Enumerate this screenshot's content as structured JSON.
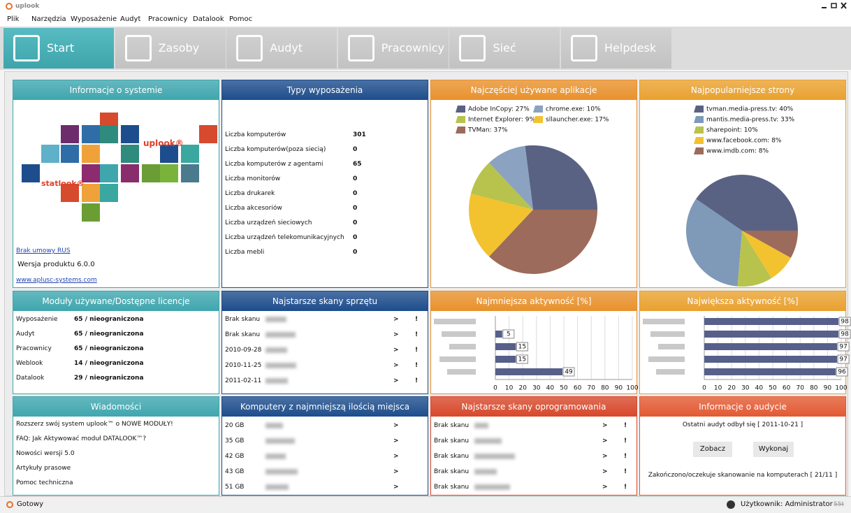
{
  "window": {
    "title": "uplook",
    "status": "Gotowy",
    "user": "Użytkownik: Administrator",
    "extra": "55t"
  },
  "menu": [
    "Plik",
    "Narzędzia",
    "Wyposażenie",
    "Audyt",
    "Pracownicy",
    "Datalook",
    "Pomoc"
  ],
  "tabs": [
    "Start",
    "Zasoby",
    "Audyt",
    "Pracownicy",
    "Sieć",
    "Helpdesk"
  ],
  "symbols": {
    "more": ">",
    "alert": "!"
  },
  "panels": {
    "system_info": {
      "title": "Informacje o systemie",
      "logo_main": "uplook®",
      "logo_sub": "statlook®",
      "link_rus": "Brak umowy RUS",
      "version": "Wersja produktu 6.0.0",
      "website": "www.aplusc-systems.com"
    },
    "equipment": {
      "title": "Typy wyposażenia",
      "rows": [
        [
          "Liczba komputerów",
          301
        ],
        [
          "Liczba komputerów(poza siecią)",
          0
        ],
        [
          "Liczba komputerów z agentami",
          65
        ],
        [
          "Liczba monitorów",
          0
        ],
        [
          "Liczba drukarek",
          0
        ],
        [
          "Liczba akcesoriów",
          0
        ],
        [
          "Liczba urządzeń sieciowych",
          0
        ],
        [
          "Liczba urządzeń telekomunikacyjnych",
          0
        ],
        [
          "Liczba mebli",
          0
        ]
      ]
    },
    "modules": {
      "title": "Moduły używane/Dostępne licencje",
      "rows": [
        [
          "Wyposażenie",
          "65 / nieograniczona"
        ],
        [
          "Audyt",
          "65 / nieograniczona"
        ],
        [
          "Pracownicy",
          "65 / nieograniczona"
        ],
        [
          "Weblook",
          "14 / nieograniczona"
        ],
        [
          "Datalook",
          "29 / nieograniczona"
        ]
      ]
    },
    "hardware_scans": {
      "title": "Najstarsze skany sprzętu",
      "rows": [
        "Brak skanu",
        "Brak skanu",
        "2010-09-28",
        "2010-11-25",
        "2011-02-11"
      ]
    },
    "news": {
      "title": "Wiadomości",
      "items": [
        "Rozszerz swój system uplook™ o NOWE MODUŁY!",
        "FAQ: Jak Aktywować moduł DATALOOK™?",
        "Nowości wersji 5.0",
        "Artykuły prasowe",
        "Pomoc techniczna"
      ]
    },
    "low_disk": {
      "title": "Komputery z najmniejszą ilością miejsca",
      "rows": [
        "20 GB",
        "35 GB",
        "42 GB",
        "43 GB",
        "51 GB"
      ]
    },
    "software_scans": {
      "title": "Najstarsze skany oprogramowania",
      "rows": [
        "Brak skanu",
        "Brak skanu",
        "Brak skanu",
        "Brak skanu",
        "Brak skanu"
      ]
    },
    "audit": {
      "title": "Informacje o audycie",
      "last": "Ostatni audyt odbył się  [ 2011-10-21 ]",
      "buttons": [
        "Zobacz",
        "Wykonaj"
      ],
      "status": "Zakończono/oczekuje skanowanie na komputerach [ 21/11 ]"
    }
  },
  "chart_data": [
    {
      "type": "pie",
      "title": "Najczęściej używane aplikacje",
      "categories": [
        "Adobe InCopy: 27%",
        "chrome.exe: 10%",
        "Internet Explorer: 9%",
        "sllauncher.exe: 17%",
        "TVMan: 37%"
      ],
      "values": [
        27,
        10,
        9,
        17,
        37
      ],
      "colors": [
        "#5a6283",
        "#8ba2c0",
        "#b7c34c",
        "#f3c22f",
        "#9c6b5b"
      ]
    },
    {
      "type": "pie",
      "title": "Najpopularniejsze strony",
      "categories": [
        "tvman.media-press.tv: 40%",
        "mantis.media-press.tv: 33%",
        "sharepoint: 10%",
        "www.facebook.com: 8%",
        "www.imdb.com: 8%"
      ],
      "values": [
        40,
        33,
        10,
        8,
        8
      ],
      "colors": [
        "#5a6283",
        "#7f99b9",
        "#b7c34c",
        "#f3c22f",
        "#9c6b5b"
      ]
    },
    {
      "type": "bar",
      "title": "Najmniejsza aktywność [%]",
      "categories": [
        null,
        null,
        null,
        null,
        null
      ],
      "values": [
        null,
        5,
        15,
        15,
        49
      ],
      "color": "#56608a",
      "xlim": [
        0,
        100
      ],
      "xticks": [
        0,
        10,
        20,
        30,
        40,
        50,
        60,
        70,
        80,
        90,
        100
      ],
      "grid": true
    },
    {
      "type": "bar",
      "title": "Największa aktywność [%]",
      "categories": [
        null,
        null,
        null,
        null,
        null
      ],
      "values": [
        98,
        98,
        97,
        97,
        96
      ],
      "color": "#56608a",
      "xlim": [
        0,
        100
      ],
      "xticks": [
        0,
        10,
        20,
        30,
        40,
        50,
        60,
        70,
        80,
        90,
        100
      ],
      "grid": true
    }
  ]
}
